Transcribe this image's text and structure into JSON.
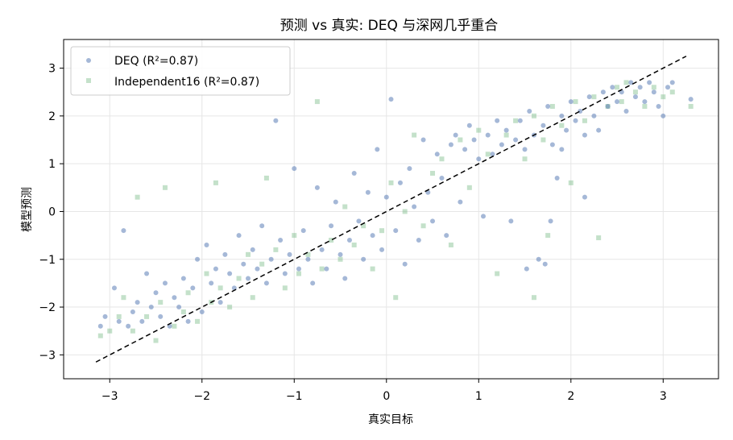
{
  "chart_data": {
    "type": "scatter",
    "title": "预测 vs 真实: DEQ 与深网几乎重合",
    "xlabel": "真实目标",
    "ylabel": "模型预测",
    "xlim": [
      -3.5,
      3.6
    ],
    "ylim": [
      -3.5,
      3.6
    ],
    "xticks": [
      -3,
      -2,
      -1,
      0,
      1,
      2,
      3
    ],
    "yticks": [
      -3,
      -2,
      -1,
      0,
      1,
      2,
      3
    ],
    "xtick_labels": [
      "−3",
      "−2",
      "−1",
      "0",
      "1",
      "2",
      "3"
    ],
    "ytick_labels": [
      "−3",
      "−2",
      "−1",
      "0",
      "1",
      "2",
      "3"
    ],
    "grid": true,
    "legend_position": "top-left",
    "reference_line": {
      "style": "dashed",
      "color": "#000000",
      "x": [
        -3.15,
        3.25
      ],
      "y": [
        -3.15,
        3.25
      ]
    },
    "series": [
      {
        "name": "DEQ (R²=0.87)",
        "marker": "circle",
        "color": "#4c72b0",
        "points": [
          [
            -3.1,
            -2.4
          ],
          [
            -3.05,
            -2.2
          ],
          [
            -2.95,
            -1.6
          ],
          [
            -2.9,
            -2.3
          ],
          [
            -2.85,
            -0.4
          ],
          [
            -2.8,
            -2.4
          ],
          [
            -2.75,
            -2.1
          ],
          [
            -2.7,
            -1.9
          ],
          [
            -2.65,
            -2.3
          ],
          [
            -2.6,
            -1.3
          ],
          [
            -2.55,
            -2.0
          ],
          [
            -2.5,
            -1.7
          ],
          [
            -2.45,
            -2.2
          ],
          [
            -2.4,
            -1.5
          ],
          [
            -2.35,
            -2.4
          ],
          [
            -2.3,
            -1.8
          ],
          [
            -2.25,
            -2.0
          ],
          [
            -2.2,
            -1.4
          ],
          [
            -2.15,
            -2.3
          ],
          [
            -2.1,
            -1.6
          ],
          [
            -2.05,
            -1.0
          ],
          [
            -2.0,
            -2.1
          ],
          [
            -1.95,
            -0.7
          ],
          [
            -1.9,
            -1.5
          ],
          [
            -1.85,
            -1.2
          ],
          [
            -1.8,
            -1.9
          ],
          [
            -1.75,
            -0.9
          ],
          [
            -1.7,
            -1.3
          ],
          [
            -1.65,
            -1.6
          ],
          [
            -1.6,
            -0.5
          ],
          [
            -1.55,
            -1.1
          ],
          [
            -1.5,
            -1.4
          ],
          [
            -1.45,
            -0.8
          ],
          [
            -1.4,
            -1.2
          ],
          [
            -1.35,
            -0.3
          ],
          [
            -1.3,
            -1.5
          ],
          [
            -1.25,
            -1.0
          ],
          [
            -1.2,
            1.9
          ],
          [
            -1.15,
            -0.6
          ],
          [
            -1.1,
            -1.3
          ],
          [
            -1.05,
            -0.9
          ],
          [
            -1.0,
            0.9
          ],
          [
            -0.95,
            -1.2
          ],
          [
            -0.9,
            -0.4
          ],
          [
            -0.85,
            -1.0
          ],
          [
            -0.8,
            -1.5
          ],
          [
            -0.75,
            0.5
          ],
          [
            -0.7,
            -0.8
          ],
          [
            -0.65,
            -1.2
          ],
          [
            -0.6,
            -0.3
          ],
          [
            -0.55,
            0.2
          ],
          [
            -0.5,
            -0.9
          ],
          [
            -0.45,
            -1.4
          ],
          [
            -0.4,
            -0.6
          ],
          [
            -0.35,
            0.8
          ],
          [
            -0.3,
            -0.2
          ],
          [
            -0.25,
            -1.0
          ],
          [
            -0.2,
            0.4
          ],
          [
            -0.15,
            -0.5
          ],
          [
            -0.1,
            1.3
          ],
          [
            -0.05,
            -0.8
          ],
          [
            0.0,
            0.3
          ],
          [
            0.05,
            2.35
          ],
          [
            0.1,
            -0.4
          ],
          [
            0.15,
            0.6
          ],
          [
            0.2,
            -1.1
          ],
          [
            0.25,
            0.9
          ],
          [
            0.3,
            0.1
          ],
          [
            0.35,
            -0.6
          ],
          [
            0.4,
            1.5
          ],
          [
            0.45,
            0.4
          ],
          [
            0.5,
            -0.2
          ],
          [
            0.55,
            1.2
          ],
          [
            0.6,
            0.7
          ],
          [
            0.65,
            -0.5
          ],
          [
            0.7,
            1.4
          ],
          [
            0.75,
            1.6
          ],
          [
            0.8,
            0.2
          ],
          [
            0.85,
            1.3
          ],
          [
            0.9,
            1.8
          ],
          [
            0.95,
            1.5
          ],
          [
            1.0,
            1.1
          ],
          [
            1.05,
            -0.1
          ],
          [
            1.1,
            1.6
          ],
          [
            1.15,
            1.2
          ],
          [
            1.2,
            1.9
          ],
          [
            1.25,
            1.4
          ],
          [
            1.3,
            1.7
          ],
          [
            1.35,
            -0.2
          ],
          [
            1.4,
            1.5
          ],
          [
            1.45,
            1.9
          ],
          [
            1.5,
            1.3
          ],
          [
            1.55,
            2.1
          ],
          [
            1.6,
            1.6
          ],
          [
            1.65,
            -1.0
          ],
          [
            1.7,
            1.8
          ],
          [
            1.75,
            2.2
          ],
          [
            1.8,
            1.4
          ],
          [
            1.85,
            0.7
          ],
          [
            1.9,
            2.0
          ],
          [
            1.95,
            1.7
          ],
          [
            2.0,
            2.3
          ],
          [
            2.05,
            1.9
          ],
          [
            2.1,
            2.1
          ],
          [
            2.15,
            0.3
          ],
          [
            2.2,
            2.4
          ],
          [
            2.25,
            2.0
          ],
          [
            2.3,
            1.7
          ],
          [
            2.35,
            2.5
          ],
          [
            2.4,
            2.2
          ],
          [
            2.45,
            2.6
          ],
          [
            2.5,
            2.3
          ],
          [
            2.55,
            2.5
          ],
          [
            2.6,
            2.1
          ],
          [
            2.65,
            2.7
          ],
          [
            2.7,
            2.4
          ],
          [
            2.75,
            2.6
          ],
          [
            2.8,
            2.3
          ],
          [
            2.85,
            2.7
          ],
          [
            2.9,
            2.5
          ],
          [
            2.95,
            2.2
          ],
          [
            3.0,
            2.0
          ],
          [
            3.05,
            2.6
          ],
          [
            3.1,
            2.7
          ],
          [
            3.3,
            2.35
          ],
          [
            1.78,
            -0.2
          ],
          [
            1.72,
            -1.1
          ],
          [
            1.52,
            -1.2
          ],
          [
            2.15,
            1.6
          ],
          [
            1.9,
            1.3
          ]
        ]
      },
      {
        "name": "Independent16 (R²=0.87)",
        "marker": "square",
        "color": "#55a868",
        "points": [
          [
            -3.1,
            -2.6
          ],
          [
            -3.0,
            -2.5
          ],
          [
            -2.9,
            -2.2
          ],
          [
            -2.85,
            -1.8
          ],
          [
            -2.75,
            -2.5
          ],
          [
            -2.7,
            0.3
          ],
          [
            -2.6,
            -2.2
          ],
          [
            -2.5,
            -2.7
          ],
          [
            -2.45,
            -1.9
          ],
          [
            -2.4,
            0.5
          ],
          [
            -2.3,
            -2.4
          ],
          [
            -2.2,
            -2.1
          ],
          [
            -2.15,
            -1.7
          ],
          [
            -2.05,
            -2.3
          ],
          [
            -1.95,
            -1.3
          ],
          [
            -1.9,
            -1.9
          ],
          [
            -1.85,
            0.6
          ],
          [
            -1.8,
            -1.6
          ],
          [
            -1.7,
            -2.0
          ],
          [
            -1.6,
            -1.4
          ],
          [
            -1.5,
            -0.9
          ],
          [
            -1.45,
            -1.8
          ],
          [
            -1.35,
            -1.1
          ],
          [
            -1.3,
            0.7
          ],
          [
            -1.2,
            -0.8
          ],
          [
            -1.1,
            -1.6
          ],
          [
            -1.0,
            -0.5
          ],
          [
            -0.95,
            -1.3
          ],
          [
            -0.85,
            -0.9
          ],
          [
            -0.75,
            2.3
          ],
          [
            -0.7,
            -1.2
          ],
          [
            -0.6,
            -0.6
          ],
          [
            -0.5,
            -1.0
          ],
          [
            -0.45,
            0.1
          ],
          [
            -0.35,
            -0.7
          ],
          [
            -0.25,
            -0.3
          ],
          [
            -0.15,
            -1.2
          ],
          [
            -0.05,
            -0.4
          ],
          [
            0.05,
            0.6
          ],
          [
            0.1,
            -1.8
          ],
          [
            0.2,
            0.0
          ],
          [
            0.3,
            1.6
          ],
          [
            0.4,
            -0.3
          ],
          [
            0.5,
            0.8
          ],
          [
            0.6,
            1.1
          ],
          [
            0.7,
            -0.7
          ],
          [
            0.8,
            1.5
          ],
          [
            0.9,
            0.5
          ],
          [
            1.0,
            1.7
          ],
          [
            1.1,
            1.2
          ],
          [
            1.2,
            -1.3
          ],
          [
            1.3,
            1.6
          ],
          [
            1.4,
            1.9
          ],
          [
            1.5,
            1.1
          ],
          [
            1.6,
            2.0
          ],
          [
            1.7,
            1.5
          ],
          [
            1.8,
            2.2
          ],
          [
            1.9,
            1.8
          ],
          [
            2.0,
            0.6
          ],
          [
            2.05,
            2.3
          ],
          [
            2.15,
            1.9
          ],
          [
            2.25,
            2.4
          ],
          [
            2.3,
            -0.55
          ],
          [
            2.4,
            2.2
          ],
          [
            2.5,
            2.6
          ],
          [
            2.55,
            2.3
          ],
          [
            2.6,
            2.7
          ],
          [
            2.7,
            2.5
          ],
          [
            2.8,
            2.2
          ],
          [
            2.9,
            2.6
          ],
          [
            3.0,
            2.4
          ],
          [
            3.1,
            2.5
          ],
          [
            3.3,
            2.2
          ],
          [
            1.75,
            -0.5
          ],
          [
            1.6,
            -1.8
          ]
        ]
      }
    ]
  }
}
